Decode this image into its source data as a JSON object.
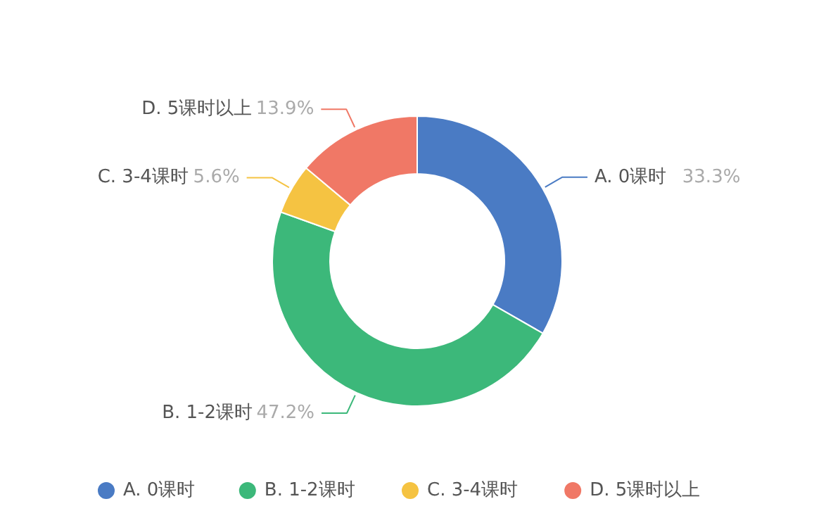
{
  "chart_data": {
    "type": "donut",
    "categories": [
      "A. 0课时",
      "B. 1-2课时",
      "C. 3-4课时",
      "D. 5课时以上"
    ],
    "values": [
      33.3,
      47.2,
      5.6,
      13.9
    ],
    "colors": [
      "#4a7bc4",
      "#3cb87a",
      "#f5c342",
      "#f07866"
    ],
    "value_labels": [
      "33.3%",
      "47.2%",
      "5.6%",
      "13.9%"
    ],
    "legend": "bottom"
  }
}
